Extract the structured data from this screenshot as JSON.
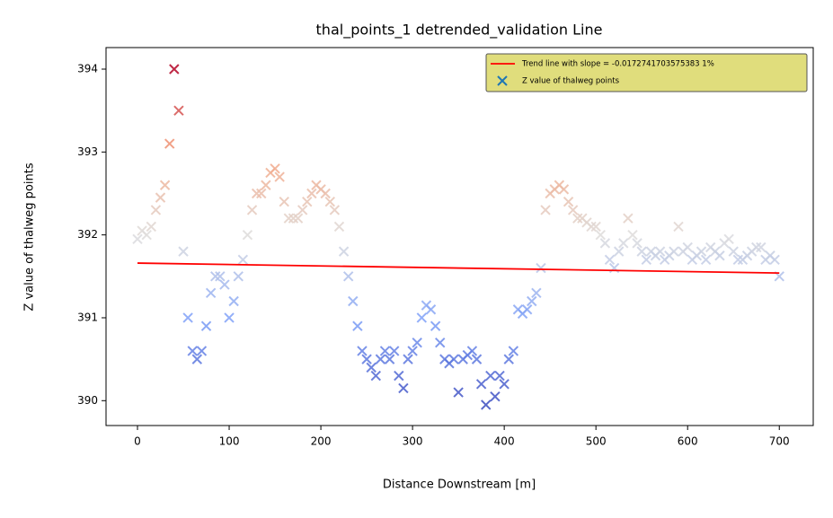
{
  "chart_data": {
    "type": "scatter",
    "title": "thal_points_1 detrended_validation Line",
    "x_label": "Distance Downstream [m]",
    "y_label": "Z value of thalweg points",
    "xlim": [
      -34.3,
      737
    ],
    "ylim": [
      389.7,
      394.26
    ],
    "xticks": [
      0,
      100,
      200,
      300,
      400,
      500,
      600,
      700
    ],
    "yticks": [
      390,
      391,
      392,
      393,
      394
    ],
    "grid": false,
    "legend": "upper right",
    "series": [
      {
        "name": "Trend line with slope = -0.0172741703575383 1%",
        "type": "line",
        "color": "#ff0000",
        "x": [
          0,
          700
        ],
        "values": [
          391.66,
          391.54
        ]
      },
      {
        "name": "Z value of thalweg points",
        "type": "scatter",
        "color": "#1f77b4",
        "colormap": "coolwarm",
        "x": [
          0,
          5,
          10,
          15,
          20,
          25,
          30,
          35,
          40,
          45,
          50,
          55,
          60,
          65,
          70,
          75,
          80,
          85,
          90,
          95,
          100,
          105,
          110,
          115,
          120,
          125,
          130,
          135,
          140,
          145,
          150,
          155,
          160,
          165,
          170,
          175,
          180,
          185,
          190,
          195,
          200,
          205,
          210,
          215,
          220,
          225,
          230,
          235,
          240,
          245,
          250,
          255,
          260,
          265,
          270,
          275,
          280,
          285,
          290,
          295,
          300,
          305,
          310,
          315,
          320,
          325,
          330,
          335,
          340,
          345,
          350,
          355,
          360,
          365,
          370,
          375,
          380,
          385,
          390,
          395,
          400,
          405,
          410,
          415,
          420,
          425,
          430,
          435,
          440,
          445,
          450,
          455,
          460,
          465,
          470,
          475,
          480,
          485,
          490,
          495,
          500,
          505,
          510,
          515,
          520,
          525,
          530,
          535,
          540,
          545,
          550,
          555,
          560,
          565,
          570,
          575,
          580,
          585,
          590,
          595,
          600,
          605,
          610,
          615,
          620,
          625,
          630,
          635,
          640,
          645,
          650,
          655,
          660,
          665,
          670,
          675,
          680,
          685,
          690,
          695,
          700
        ],
        "values": [
          391.95,
          392.05,
          392.0,
          392.1,
          392.3,
          392.45,
          392.6,
          393.1,
          394.0,
          393.5,
          391.8,
          391.0,
          390.6,
          390.5,
          390.6,
          390.9,
          391.3,
          391.5,
          391.5,
          391.4,
          391.0,
          391.2,
          391.5,
          391.7,
          392.0,
          392.3,
          392.5,
          392.5,
          392.6,
          392.75,
          392.8,
          392.7,
          392.4,
          392.2,
          392.2,
          392.2,
          392.3,
          392.4,
          392.5,
          392.6,
          392.55,
          392.5,
          392.4,
          392.3,
          392.1,
          391.8,
          391.5,
          391.2,
          390.9,
          390.6,
          390.5,
          390.4,
          390.3,
          390.5,
          390.6,
          390.5,
          390.6,
          390.3,
          390.15,
          390.5,
          390.6,
          390.7,
          391.0,
          391.15,
          391.1,
          390.9,
          390.7,
          390.5,
          390.45,
          390.5,
          390.1,
          390.5,
          390.55,
          390.6,
          390.5,
          390.2,
          389.95,
          390.3,
          390.05,
          390.3,
          390.2,
          390.5,
          390.6,
          391.1,
          391.05,
          391.1,
          391.2,
          391.3,
          391.6,
          392.3,
          392.5,
          392.55,
          392.6,
          392.55,
          392.4,
          392.3,
          392.2,
          392.2,
          392.15,
          392.1,
          392.1,
          392.0,
          391.9,
          391.7,
          391.6,
          391.8,
          391.9,
          392.2,
          392.0,
          391.9,
          391.8,
          391.7,
          391.8,
          391.75,
          391.8,
          391.7,
          391.75,
          391.8,
          392.1,
          391.8,
          391.85,
          391.7,
          391.75,
          391.8,
          391.7,
          391.85,
          391.8,
          391.75,
          391.9,
          391.95,
          391.8,
          391.7,
          391.7,
          391.75,
          391.8,
          391.85,
          391.85,
          391.7,
          391.75,
          391.7,
          391.5
        ]
      }
    ]
  }
}
